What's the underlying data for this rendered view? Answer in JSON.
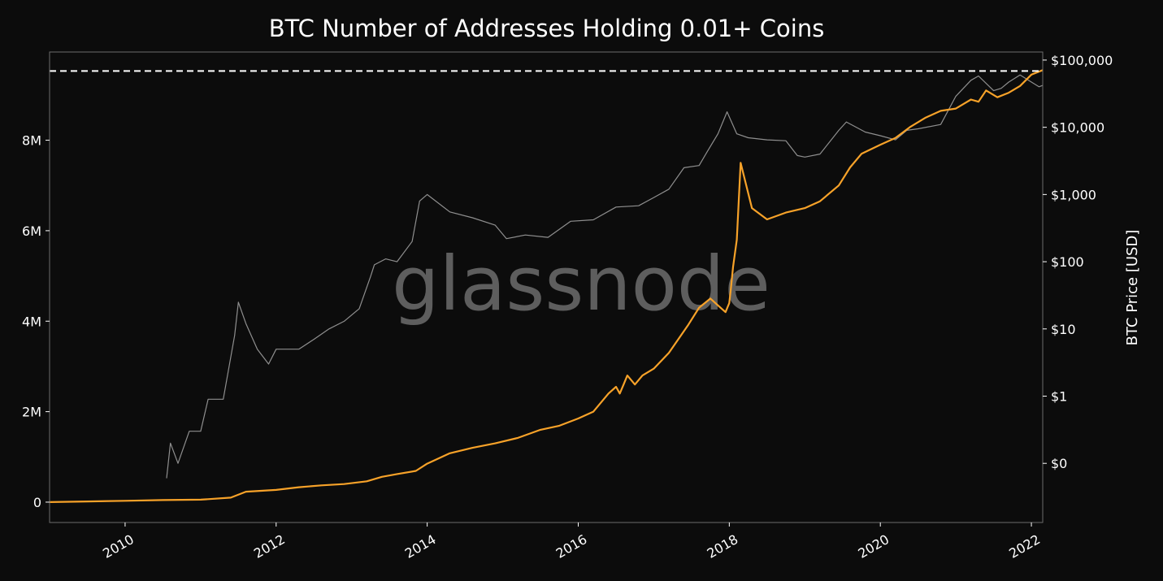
{
  "chart_data": {
    "type": "line",
    "title": "BTC Number of Addresses Holding 0.01+ Coins",
    "watermark": "glassnode",
    "xlabel": "",
    "ylabel": "",
    "y2label": "BTC Price [USD]",
    "x_ticks": [
      "2010",
      "2012",
      "2014",
      "2016",
      "2018",
      "2020",
      "2022"
    ],
    "x_range": [
      2009.0,
      2022.15
    ],
    "y_ticks": [
      "0",
      "2M",
      "4M",
      "6M",
      "8M"
    ],
    "y_tick_values": [
      0,
      2000000,
      4000000,
      6000000,
      8000000
    ],
    "y_range": [
      -450000,
      9950000
    ],
    "y2_ticks": [
      "$0",
      "$1",
      "$10",
      "$100",
      "$1,000",
      "$10,000",
      "$100,000"
    ],
    "y2_tick_log_values": [
      -1,
      0,
      1,
      2,
      3,
      4,
      5
    ],
    "y2_log_range": [
      -1.88,
      5.12
    ],
    "y2_scale": "log",
    "grid": false,
    "legend": "none",
    "ath_line_value": 9530000,
    "colors": {
      "background": "#0c0c0c",
      "addresses": "#f7a229",
      "price": "#8f8f8f",
      "ath_line": "#ffffff",
      "axes": "#6b6b6b"
    },
    "series": [
      {
        "key": "addresses",
        "axis": "left",
        "x": [
          2009.0,
          2009.5,
          2010.0,
          2010.5,
          2011.0,
          2011.4,
          2011.6,
          2011.8,
          2012.0,
          2012.3,
          2012.6,
          2012.9,
          2013.2,
          2013.4,
          2013.6,
          2013.85,
          2014.0,
          2014.3,
          2014.6,
          2014.9,
          2015.2,
          2015.5,
          2015.75,
          2016.0,
          2016.2,
          2016.4,
          2016.5,
          2016.55,
          2016.6,
          2016.65,
          2016.75,
          2016.85,
          2017.0,
          2017.2,
          2017.45,
          2017.6,
          2017.75,
          2017.85,
          2017.95,
          2018.0,
          2018.02,
          2018.05,
          2018.1,
          2018.15,
          2018.3,
          2018.5,
          2018.75,
          2019.0,
          2019.2,
          2019.45,
          2019.6,
          2019.75,
          2020.0,
          2020.2,
          2020.4,
          2020.6,
          2020.8,
          2021.0,
          2021.2,
          2021.3,
          2021.4,
          2021.55,
          2021.7,
          2021.85,
          2022.0,
          2022.15
        ],
        "values": [
          0,
          15000,
          30000,
          45000,
          55000,
          100000,
          230000,
          250000,
          270000,
          330000,
          370000,
          400000,
          460000,
          560000,
          620000,
          690000,
          850000,
          1080000,
          1200000,
          1300000,
          1420000,
          1600000,
          1690000,
          1850000,
          2000000,
          2400000,
          2550000,
          2400000,
          2600000,
          2800000,
          2600000,
          2800000,
          2950000,
          3300000,
          3900000,
          4300000,
          4500000,
          4350000,
          4200000,
          4400000,
          4700000,
          5200000,
          5800000,
          7500000,
          6500000,
          6250000,
          6400000,
          6500000,
          6650000,
          7000000,
          7400000,
          7700000,
          7900000,
          8050000,
          8300000,
          8500000,
          8650000,
          8700000,
          8900000,
          8850000,
          9100000,
          8950000,
          9050000,
          9200000,
          9450000,
          9550000
        ]
      },
      {
        "key": "price",
        "axis": "right",
        "x": [
          2010.55,
          2010.6,
          2010.7,
          2010.85,
          2011.0,
          2011.1,
          2011.3,
          2011.45,
          2011.5,
          2011.6,
          2011.75,
          2011.9,
          2012.0,
          2012.15,
          2012.3,
          2012.5,
          2012.7,
          2012.9,
          2013.1,
          2013.25,
          2013.3,
          2013.45,
          2013.6,
          2013.8,
          2013.9,
          2014.0,
          2014.3,
          2014.6,
          2014.9,
          2015.05,
          2015.3,
          2015.6,
          2015.9,
          2016.2,
          2016.5,
          2016.8,
          2017.0,
          2017.2,
          2017.4,
          2017.6,
          2017.7,
          2017.85,
          2017.97,
          2018.1,
          2018.25,
          2018.5,
          2018.75,
          2018.9,
          2019.0,
          2019.2,
          2019.45,
          2019.55,
          2019.8,
          2020.0,
          2020.2,
          2020.35,
          2020.5,
          2020.8,
          2021.0,
          2021.2,
          2021.3,
          2021.5,
          2021.6,
          2021.7,
          2021.85,
          2022.0,
          2022.1,
          2022.15
        ],
        "values": [
          0.06,
          0.2,
          0.1,
          0.3,
          0.3,
          0.9,
          0.9,
          8,
          25,
          12,
          5,
          3,
          5,
          5,
          5,
          7,
          10,
          13,
          20,
          60,
          90,
          110,
          100,
          200,
          800,
          1000,
          550,
          450,
          350,
          220,
          250,
          230,
          400,
          420,
          650,
          680,
          900,
          1200,
          2500,
          2700,
          4200,
          8000,
          17000,
          8000,
          7000,
          6500,
          6300,
          3800,
          3600,
          4000,
          9000,
          12000,
          8500,
          7500,
          6500,
          9000,
          9500,
          11000,
          29000,
          50000,
          58000,
          35000,
          38000,
          47000,
          60000,
          47000,
          40000,
          42000
        ]
      }
    ]
  }
}
